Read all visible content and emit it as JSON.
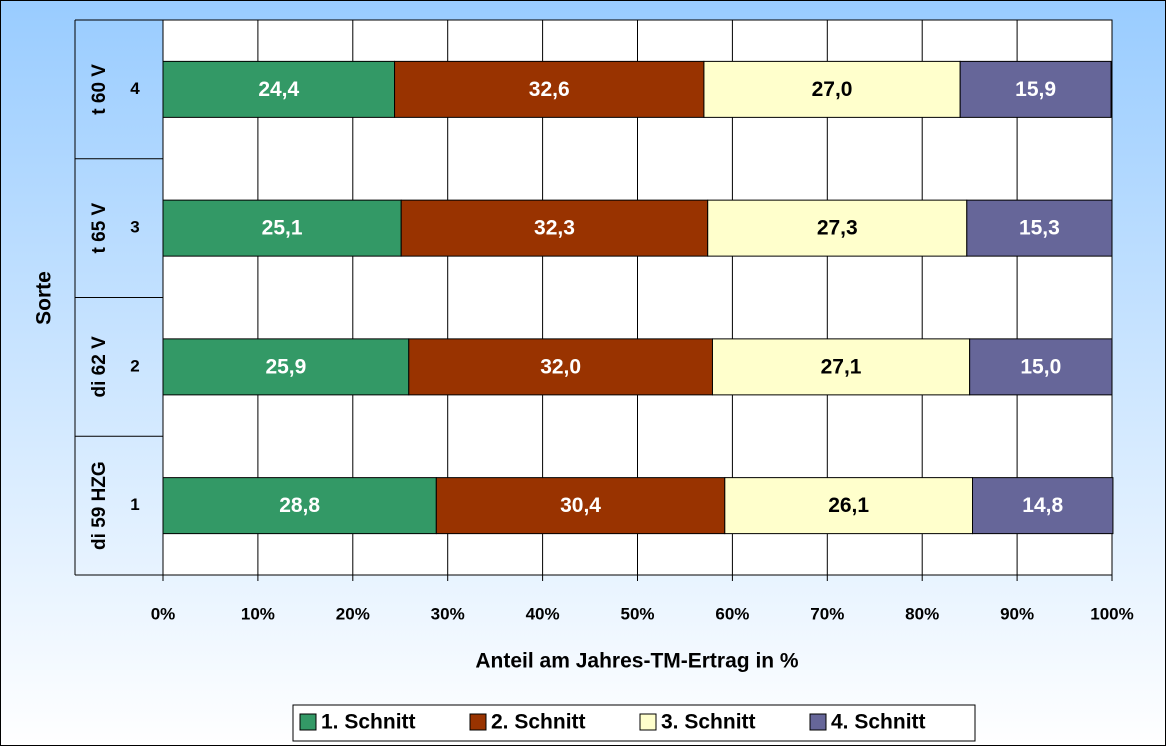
{
  "chart_data": {
    "type": "stacked_bar_horizontal",
    "y_axis_label": "Sorte",
    "x_axis_label": "Anteil am Jahres-TM-Ertrag in %",
    "categories": [
      "1",
      "2",
      "3",
      "4"
    ],
    "groups": [
      "di 59 HZG",
      "di 62 V",
      "t 65 V",
      "t 60 V"
    ],
    "series": [
      {
        "name": "1. Schnitt",
        "color": "#339966",
        "label_color": "#ffffff",
        "values": [
          28.8,
          25.9,
          25.1,
          24.4
        ],
        "value_labels": [
          "28,8",
          "25,9",
          "25,1",
          "24,4"
        ]
      },
      {
        "name": "2. Schnitt",
        "color": "#993300",
        "label_color": "#ffffff",
        "values": [
          30.4,
          32.0,
          32.3,
          32.6
        ],
        "value_labels": [
          "30,4",
          "32,0",
          "32,3",
          "32,6"
        ]
      },
      {
        "name": "3. Schnitt",
        "color": "#ffffcc",
        "label_color": "#000000",
        "values": [
          26.1,
          27.1,
          27.3,
          27.0
        ],
        "value_labels": [
          "26,1",
          "27,1",
          "27,3",
          "27,0"
        ]
      },
      {
        "name": "4. Schnitt",
        "color": "#666699",
        "label_color": "#ffffff",
        "values": [
          14.8,
          15.0,
          15.3,
          15.9
        ],
        "value_labels": [
          "14,8",
          "15,0",
          "15,3",
          "15,9"
        ]
      }
    ],
    "xlim": [
      0,
      100
    ],
    "xticks": [
      {
        "value": 0,
        "label": "0%"
      },
      {
        "value": 10,
        "label": "10%"
      },
      {
        "value": 20,
        "label": "20%"
      },
      {
        "value": 30,
        "label": "30%"
      },
      {
        "value": 40,
        "label": "40%"
      },
      {
        "value": 50,
        "label": "50%"
      },
      {
        "value": 60,
        "label": "60%"
      },
      {
        "value": 70,
        "label": "70%"
      },
      {
        "value": 80,
        "label": "80%"
      },
      {
        "value": 90,
        "label": "90%"
      },
      {
        "value": 100,
        "label": "100%"
      }
    ],
    "grid": true,
    "legend": "bottom"
  }
}
